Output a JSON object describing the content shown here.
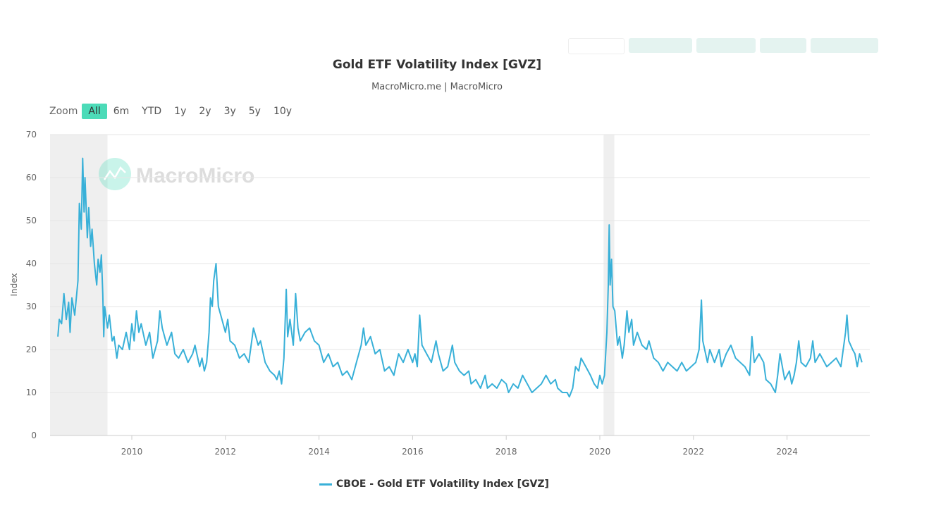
{
  "colors": {
    "series": "#38b0d8",
    "shade": "#efefef",
    "grid": "#e6e6e6",
    "active_zoom": "#4cdbb8"
  },
  "header": {
    "title": "Gold ETF Volatility Index [GVZ]",
    "subtitle": "MacroMicro.me | MacroMicro"
  },
  "zoom": {
    "label": "Zoom",
    "options": [
      "All",
      "6m",
      "YTD",
      "1y",
      "2y",
      "3y",
      "5y",
      "10y"
    ],
    "selected": "All"
  },
  "watermark": "MacroMicro",
  "chart_data": {
    "type": "line",
    "title": "Gold ETF Volatility Index [GVZ]",
    "ylabel": "Index",
    "xlabel": "",
    "ylim": [
      0,
      70
    ],
    "yticks": [
      0,
      10,
      20,
      30,
      40,
      50,
      60,
      70
    ],
    "xlim": [
      2008.2,
      2025.8
    ],
    "xticks": [
      2010,
      2012,
      2014,
      2016,
      2018,
      2020,
      2022,
      2024
    ],
    "grid": true,
    "legend": "bottom",
    "shaded_periods": [
      [
        2008.25,
        2009.48
      ],
      [
        2020.08,
        2020.31
      ]
    ],
    "series": [
      {
        "name": "CBOE - Gold ETF Volatility Index [GVZ]",
        "points": [
          [
            2008.42,
            23
          ],
          [
            2008.45,
            27
          ],
          [
            2008.5,
            26
          ],
          [
            2008.55,
            33
          ],
          [
            2008.6,
            27
          ],
          [
            2008.65,
            31
          ],
          [
            2008.68,
            24
          ],
          [
            2008.72,
            32
          ],
          [
            2008.78,
            28
          ],
          [
            2008.85,
            36
          ],
          [
            2008.88,
            54
          ],
          [
            2008.92,
            48
          ],
          [
            2008.95,
            64.5
          ],
          [
            2008.98,
            52
          ],
          [
            2009.0,
            60
          ],
          [
            2009.05,
            46
          ],
          [
            2009.08,
            53
          ],
          [
            2009.12,
            44
          ],
          [
            2009.15,
            48
          ],
          [
            2009.2,
            40
          ],
          [
            2009.25,
            35
          ],
          [
            2009.28,
            41
          ],
          [
            2009.32,
            38
          ],
          [
            2009.35,
            42
          ],
          [
            2009.38,
            33
          ],
          [
            2009.4,
            23
          ],
          [
            2009.42,
            30
          ],
          [
            2009.48,
            25
          ],
          [
            2009.52,
            28
          ],
          [
            2009.58,
            22
          ],
          [
            2009.62,
            23
          ],
          [
            2009.68,
            18
          ],
          [
            2009.72,
            21
          ],
          [
            2009.8,
            20
          ],
          [
            2009.88,
            24
          ],
          [
            2009.95,
            20
          ],
          [
            2010.0,
            26
          ],
          [
            2010.05,
            22
          ],
          [
            2010.1,
            29
          ],
          [
            2010.15,
            24
          ],
          [
            2010.2,
            26
          ],
          [
            2010.3,
            21
          ],
          [
            2010.38,
            24
          ],
          [
            2010.45,
            18
          ],
          [
            2010.55,
            22
          ],
          [
            2010.6,
            29
          ],
          [
            2010.65,
            25
          ],
          [
            2010.75,
            21
          ],
          [
            2010.85,
            24
          ],
          [
            2010.92,
            19
          ],
          [
            2011.0,
            18
          ],
          [
            2011.1,
            20
          ],
          [
            2011.2,
            17
          ],
          [
            2011.3,
            19
          ],
          [
            2011.35,
            21
          ],
          [
            2011.45,
            16
          ],
          [
            2011.5,
            18
          ],
          [
            2011.55,
            15
          ],
          [
            2011.6,
            17
          ],
          [
            2011.65,
            24
          ],
          [
            2011.68,
            32
          ],
          [
            2011.72,
            30
          ],
          [
            2011.75,
            36
          ],
          [
            2011.8,
            40
          ],
          [
            2011.85,
            30
          ],
          [
            2011.9,
            28
          ],
          [
            2011.95,
            26
          ],
          [
            2012.0,
            24
          ],
          [
            2012.05,
            27
          ],
          [
            2012.1,
            22
          ],
          [
            2012.2,
            21
          ],
          [
            2012.3,
            18
          ],
          [
            2012.4,
            19
          ],
          [
            2012.5,
            17
          ],
          [
            2012.6,
            25
          ],
          [
            2012.7,
            21
          ],
          [
            2012.75,
            22
          ],
          [
            2012.85,
            17
          ],
          [
            2012.95,
            15
          ],
          [
            2013.05,
            14
          ],
          [
            2013.1,
            13
          ],
          [
            2013.15,
            15
          ],
          [
            2013.2,
            12
          ],
          [
            2013.25,
            18
          ],
          [
            2013.3,
            34
          ],
          [
            2013.33,
            23
          ],
          [
            2013.38,
            27
          ],
          [
            2013.45,
            21
          ],
          [
            2013.5,
            33
          ],
          [
            2013.55,
            25
          ],
          [
            2013.6,
            22
          ],
          [
            2013.7,
            24
          ],
          [
            2013.8,
            25
          ],
          [
            2013.9,
            22
          ],
          [
            2014.0,
            21
          ],
          [
            2014.1,
            17
          ],
          [
            2014.2,
            19
          ],
          [
            2014.3,
            16
          ],
          [
            2014.4,
            17
          ],
          [
            2014.5,
            14
          ],
          [
            2014.6,
            15
          ],
          [
            2014.7,
            13
          ],
          [
            2014.8,
            17
          ],
          [
            2014.9,
            21
          ],
          [
            2014.95,
            25
          ],
          [
            2015.0,
            21
          ],
          [
            2015.1,
            23
          ],
          [
            2015.2,
            19
          ],
          [
            2015.3,
            20
          ],
          [
            2015.4,
            15
          ],
          [
            2015.5,
            16
          ],
          [
            2015.6,
            14
          ],
          [
            2015.7,
            19
          ],
          [
            2015.8,
            17
          ],
          [
            2015.9,
            20
          ],
          [
            2016.0,
            17
          ],
          [
            2016.05,
            19
          ],
          [
            2016.1,
            16
          ],
          [
            2016.15,
            28
          ],
          [
            2016.2,
            21
          ],
          [
            2016.3,
            19
          ],
          [
            2016.4,
            17
          ],
          [
            2016.5,
            22
          ],
          [
            2016.55,
            19
          ],
          [
            2016.65,
            15
          ],
          [
            2016.75,
            16
          ],
          [
            2016.85,
            21
          ],
          [
            2016.9,
            17
          ],
          [
            2017.0,
            15
          ],
          [
            2017.1,
            14
          ],
          [
            2017.2,
            15
          ],
          [
            2017.25,
            12
          ],
          [
            2017.35,
            13
          ],
          [
            2017.45,
            11
          ],
          [
            2017.55,
            14
          ],
          [
            2017.6,
            11
          ],
          [
            2017.7,
            12
          ],
          [
            2017.8,
            11
          ],
          [
            2017.9,
            13
          ],
          [
            2018.0,
            12
          ],
          [
            2018.05,
            10
          ],
          [
            2018.15,
            12
          ],
          [
            2018.25,
            11
          ],
          [
            2018.35,
            14
          ],
          [
            2018.45,
            12
          ],
          [
            2018.55,
            10
          ],
          [
            2018.65,
            11
          ],
          [
            2018.75,
            12
          ],
          [
            2018.85,
            14
          ],
          [
            2018.95,
            12
          ],
          [
            2019.05,
            13
          ],
          [
            2019.1,
            11
          ],
          [
            2019.2,
            10
          ],
          [
            2019.3,
            10
          ],
          [
            2019.35,
            9
          ],
          [
            2019.42,
            11
          ],
          [
            2019.48,
            16
          ],
          [
            2019.55,
            15
          ],
          [
            2019.6,
            18
          ],
          [
            2019.7,
            16
          ],
          [
            2019.8,
            14
          ],
          [
            2019.88,
            12
          ],
          [
            2019.95,
            11
          ],
          [
            2020.0,
            14
          ],
          [
            2020.05,
            12
          ],
          [
            2020.1,
            14
          ],
          [
            2020.15,
            24
          ],
          [
            2020.18,
            35
          ],
          [
            2020.2,
            49
          ],
          [
            2020.22,
            35
          ],
          [
            2020.25,
            41
          ],
          [
            2020.28,
            30
          ],
          [
            2020.32,
            29
          ],
          [
            2020.38,
            21
          ],
          [
            2020.42,
            23
          ],
          [
            2020.48,
            18
          ],
          [
            2020.52,
            21
          ],
          [
            2020.58,
            29
          ],
          [
            2020.62,
            24
          ],
          [
            2020.68,
            27
          ],
          [
            2020.72,
            21
          ],
          [
            2020.8,
            24
          ],
          [
            2020.9,
            21
          ],
          [
            2021.0,
            20
          ],
          [
            2021.05,
            22
          ],
          [
            2021.15,
            18
          ],
          [
            2021.25,
            17
          ],
          [
            2021.35,
            15
          ],
          [
            2021.45,
            17
          ],
          [
            2021.55,
            16
          ],
          [
            2021.65,
            15
          ],
          [
            2021.75,
            17
          ],
          [
            2021.85,
            15
          ],
          [
            2021.95,
            16
          ],
          [
            2022.05,
            17
          ],
          [
            2022.12,
            20
          ],
          [
            2022.17,
            31.5
          ],
          [
            2022.2,
            22
          ],
          [
            2022.3,
            17
          ],
          [
            2022.35,
            20
          ],
          [
            2022.45,
            17
          ],
          [
            2022.55,
            20
          ],
          [
            2022.6,
            16
          ],
          [
            2022.7,
            19
          ],
          [
            2022.8,
            21
          ],
          [
            2022.9,
            18
          ],
          [
            2023.0,
            17
          ],
          [
            2023.1,
            16
          ],
          [
            2023.2,
            14
          ],
          [
            2023.25,
            23
          ],
          [
            2023.3,
            17
          ],
          [
            2023.4,
            19
          ],
          [
            2023.5,
            17
          ],
          [
            2023.55,
            13
          ],
          [
            2023.65,
            12
          ],
          [
            2023.75,
            10
          ],
          [
            2023.8,
            14
          ],
          [
            2023.85,
            19
          ],
          [
            2023.95,
            13
          ],
          [
            2024.05,
            15
          ],
          [
            2024.1,
            12
          ],
          [
            2024.15,
            14
          ],
          [
            2024.2,
            17
          ],
          [
            2024.25,
            22
          ],
          [
            2024.3,
            17
          ],
          [
            2024.4,
            16
          ],
          [
            2024.5,
            18
          ],
          [
            2024.55,
            22
          ],
          [
            2024.6,
            17
          ],
          [
            2024.7,
            19
          ],
          [
            2024.75,
            18
          ],
          [
            2024.85,
            16
          ],
          [
            2024.95,
            17
          ],
          [
            2025.05,
            18
          ],
          [
            2025.15,
            16
          ],
          [
            2025.25,
            24
          ],
          [
            2025.28,
            28
          ],
          [
            2025.32,
            22
          ],
          [
            2025.4,
            20
          ],
          [
            2025.45,
            19
          ],
          [
            2025.5,
            16
          ],
          [
            2025.55,
            19
          ],
          [
            2025.6,
            17
          ]
        ]
      }
    ]
  }
}
